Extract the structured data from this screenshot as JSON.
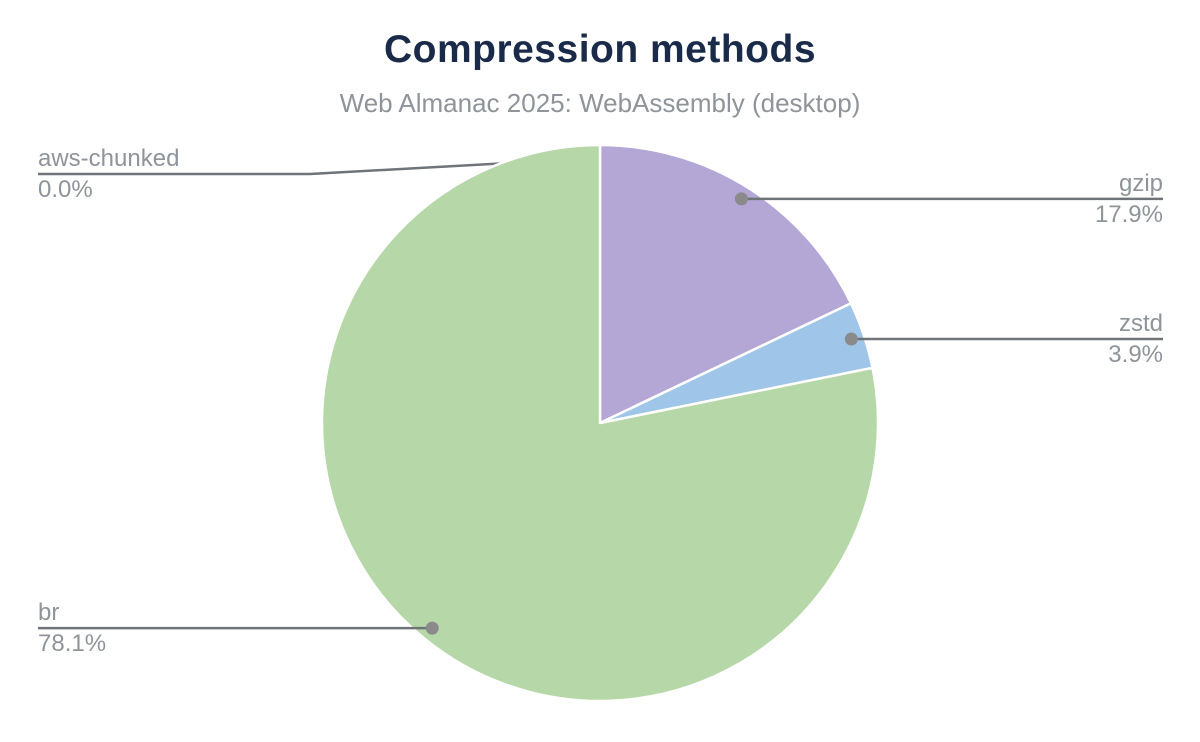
{
  "page": {
    "background_color": "#ffffff"
  },
  "chart_data": {
    "type": "pie",
    "title": "Compression methods",
    "subtitle": "Web Almanac 2025: WebAssembly (desktop)",
    "start_angle_deg": 0,
    "direction": "clockwise",
    "legend_position": "callout-labels",
    "grid": false,
    "slices": [
      {
        "label": "aws-chunked",
        "value": 0.0,
        "percent_label": "0.0%",
        "color": "#cccccc",
        "label_side": "left"
      },
      {
        "label": "gzip",
        "value": 17.9,
        "percent_label": "17.9%",
        "color": "#b4a7d6",
        "label_side": "right"
      },
      {
        "label": "zstd",
        "value": 3.9,
        "percent_label": "3.9%",
        "color": "#9fc5e8",
        "label_side": "right"
      },
      {
        "label": "br",
        "value": 78.1,
        "percent_label": "78.1%",
        "color": "#b6d7a8",
        "label_side": "left"
      }
    ],
    "colors": {
      "title_text": "#1a2b49",
      "subtitle_text": "#8e9499",
      "label_text": "#8e9499",
      "leader_line": "#6f7478",
      "callout_dot": "#8a8a8a",
      "slice_border": "#ffffff"
    }
  }
}
